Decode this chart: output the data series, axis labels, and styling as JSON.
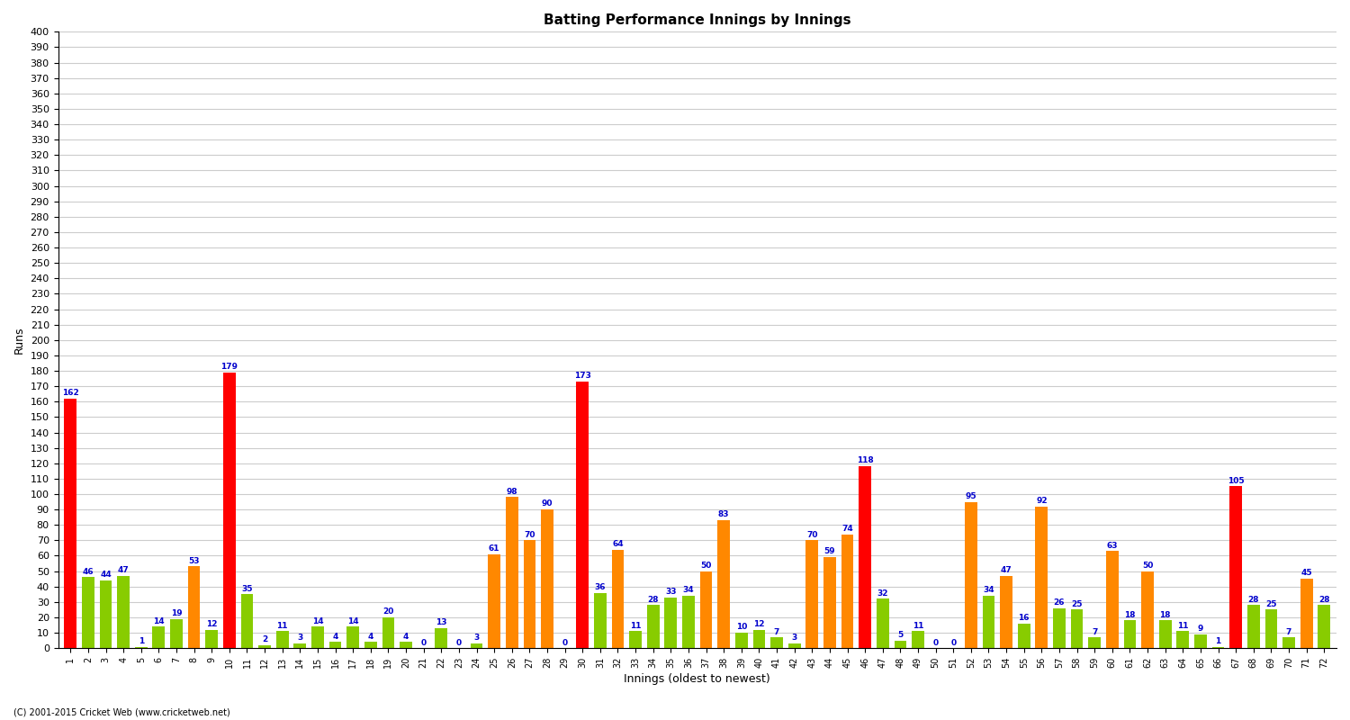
{
  "title": "Batting Performance Innings by Innings",
  "xlabel": "Innings (oldest to newest)",
  "ylabel": "Runs",
  "footer": "(C) 2001-2015 Cricket Web (www.cricketweb.net)",
  "innings": [
    1,
    2,
    3,
    4,
    5,
    6,
    7,
    8,
    9,
    10,
    11,
    12,
    13,
    14,
    15,
    16,
    17,
    18,
    19,
    20,
    21,
    22,
    23,
    24,
    25,
    26,
    27,
    28,
    29,
    30,
    31,
    32,
    33,
    34,
    35,
    36,
    37,
    38,
    39,
    40,
    41,
    42,
    43,
    44,
    45,
    46,
    47,
    48,
    49,
    50,
    51,
    52,
    53,
    54,
    55,
    56,
    57,
    58,
    59,
    60,
    61,
    62,
    63,
    64,
    65,
    66,
    67,
    68,
    69,
    70,
    71,
    72
  ],
  "scores": [
    162,
    46,
    44,
    47,
    1,
    14,
    19,
    53,
    12,
    179,
    35,
    2,
    11,
    3,
    14,
    4,
    14,
    4,
    20,
    4,
    0,
    13,
    0,
    3,
    61,
    98,
    70,
    90,
    0,
    173,
    36,
    64,
    11,
    28,
    33,
    34,
    50,
    83,
    10,
    12,
    7,
    3,
    70,
    59,
    74,
    118,
    32,
    5,
    11,
    0,
    0,
    95,
    34,
    47,
    16,
    92,
    26,
    25,
    7,
    63,
    18,
    50,
    18,
    11,
    9,
    1,
    105,
    28,
    25,
    7,
    45,
    28
  ],
  "colors": [
    "#ff0000",
    "#88cc00",
    "#88cc00",
    "#88cc00",
    "#88cc00",
    "#88cc00",
    "#88cc00",
    "#ff8800",
    "#88cc00",
    "#ff0000",
    "#88cc00",
    "#88cc00",
    "#88cc00",
    "#88cc00",
    "#88cc00",
    "#88cc00",
    "#88cc00",
    "#88cc00",
    "#88cc00",
    "#88cc00",
    "#88cc00",
    "#88cc00",
    "#88cc00",
    "#88cc00",
    "#ff8800",
    "#ff8800",
    "#ff8800",
    "#ff8800",
    "#88cc00",
    "#ff0000",
    "#88cc00",
    "#ff8800",
    "#88cc00",
    "#88cc00",
    "#88cc00",
    "#88cc00",
    "#ff8800",
    "#ff8800",
    "#88cc00",
    "#88cc00",
    "#88cc00",
    "#88cc00",
    "#ff8800",
    "#ff8800",
    "#ff8800",
    "#ff0000",
    "#88cc00",
    "#88cc00",
    "#88cc00",
    "#88cc00",
    "#88cc00",
    "#ff8800",
    "#88cc00",
    "#ff8800",
    "#88cc00",
    "#ff8800",
    "#88cc00",
    "#88cc00",
    "#88cc00",
    "#ff8800",
    "#88cc00",
    "#ff8800",
    "#88cc00",
    "#88cc00",
    "#88cc00",
    "#88cc00",
    "#ff0000",
    "#88cc00",
    "#88cc00",
    "#88cc00",
    "#ff8800",
    "#88cc00"
  ],
  "ylim": [
    0,
    400
  ],
  "yticks": [
    0,
    10,
    20,
    30,
    40,
    50,
    60,
    70,
    80,
    90,
    100,
    110,
    120,
    130,
    140,
    150,
    160,
    170,
    180,
    190,
    200,
    210,
    220,
    230,
    240,
    250,
    260,
    270,
    280,
    290,
    300,
    310,
    320,
    330,
    340,
    350,
    360,
    370,
    380,
    390,
    400
  ],
  "bg_color": "#ffffff",
  "grid_color": "#cccccc",
  "bar_label_color": "#0000cc",
  "bar_label_fontsize": 6.5
}
